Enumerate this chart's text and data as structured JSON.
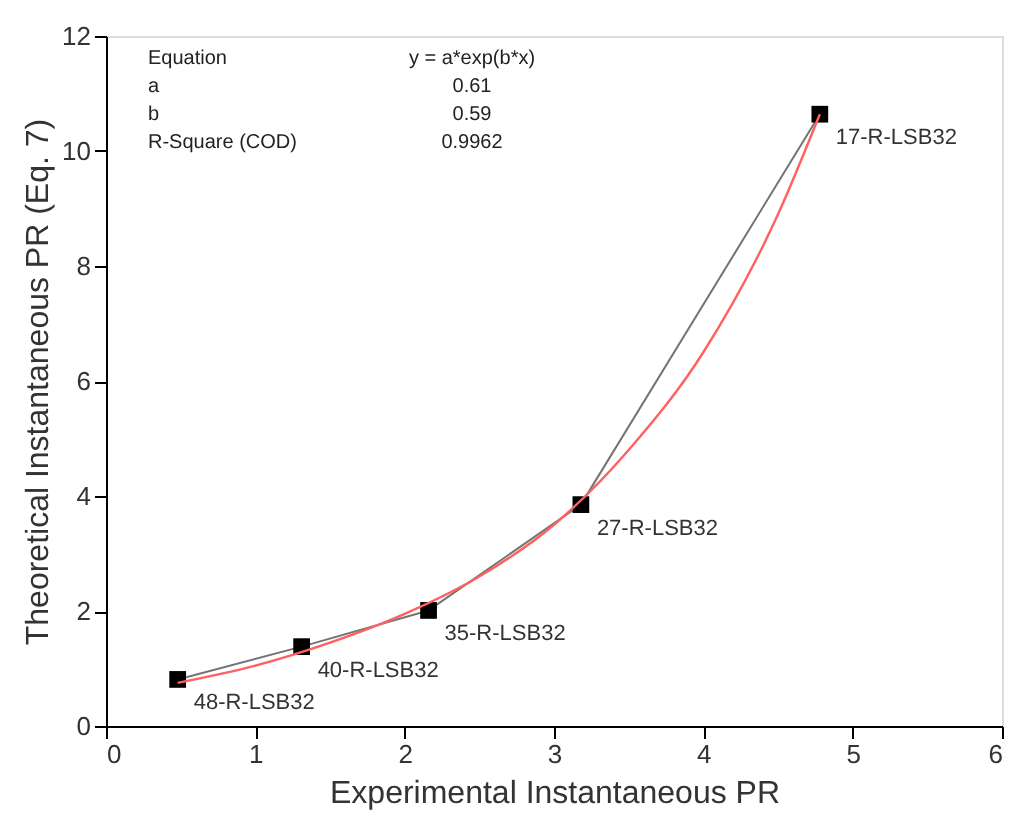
{
  "chart_data": {
    "type": "scatter",
    "xlabel": "Experimental Instantaneous PR",
    "ylabel": "Theoretical Instantaneous PR (Eq. 7)",
    "xlim": [
      0,
      6
    ],
    "xticks": [
      0,
      1,
      2,
      3,
      4,
      5,
      6
    ],
    "ylim": [
      0,
      12
    ],
    "yticks": [
      0,
      2,
      4,
      6,
      8,
      10,
      12
    ],
    "grid": false,
    "marker": "square",
    "series": [
      {
        "color": "#000000",
        "x": [
          0.48,
          1.31,
          2.16,
          3.18,
          4.78
        ],
        "values": [
          0.81,
          1.38,
          2.01,
          3.85,
          10.64
        ]
      },
      {
        "type": "line",
        "marker": "none",
        "color": "#ff6060",
        "x": [
          0.48,
          1.0,
          1.5,
          2.0,
          2.5,
          3.0,
          3.5,
          4.0,
          4.5,
          4.78
        ],
        "values": [
          0.75,
          1.05,
          1.45,
          1.95,
          2.6,
          3.5,
          4.8,
          6.5,
          8.9,
          10.64
        ]
      }
    ],
    "annotations": [
      "Equation",
      "y = a*exp(b*x)",
      "a",
      "0.61",
      "b",
      "0.59",
      "R-Square (COD)",
      "0.9962",
      {
        "text": "48-R-LSB32",
        "x": 0.48,
        "y": 0.81
      },
      {
        "text": "40-R-LSB32",
        "x": 1.31,
        "y": 1.38
      },
      {
        "text": "35-R-LSB32",
        "x": 2.16,
        "y": 2.01
      },
      {
        "text": "27-R-LSB32",
        "x": 3.18,
        "y": 3.85
      },
      {
        "text": "17-R-LSB32",
        "x": 4.78,
        "y": 10.64
      }
    ]
  }
}
